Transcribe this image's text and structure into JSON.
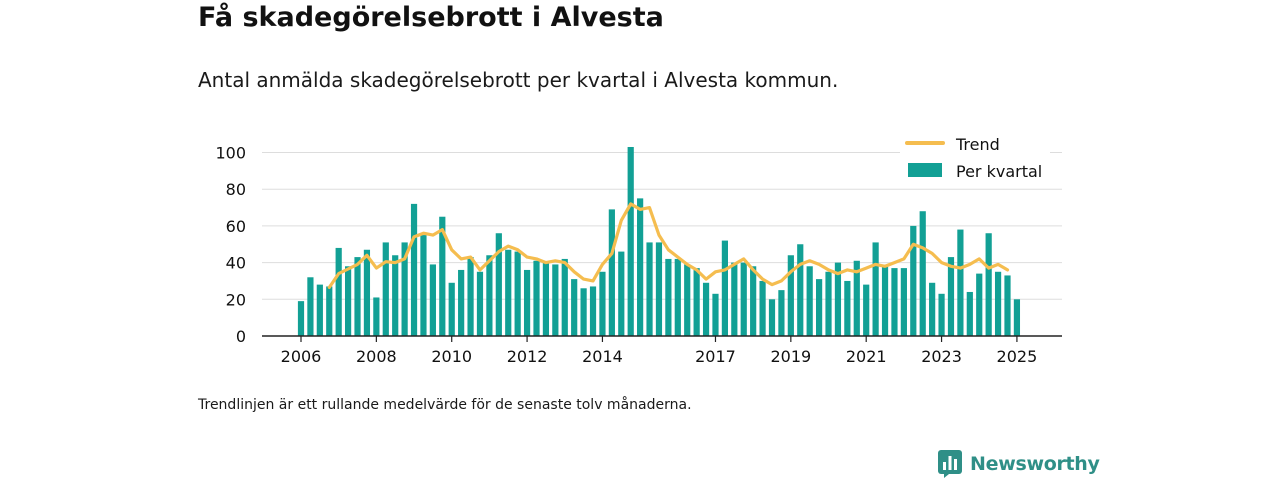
{
  "title": "Få skadegörelsebrott i Alvesta",
  "subtitle": "Antal anmälda skadegörelsebrott per kvartal i Alvesta kommun.",
  "footnote": "Trendlinjen är ett rullande medelvärde för de senaste tolv månaderna.",
  "brand": {
    "name": "Newsworthy",
    "icon": "newsworthy-logo-icon"
  },
  "colors": {
    "bars": "#12a095",
    "trend": "#f5bd4f",
    "grid": "#dddddd",
    "axis": "#222222",
    "brand": "#2f8f87"
  },
  "chart_data": {
    "type": "bar",
    "xaxis_type": "quarterly-time",
    "quarters": [
      "2006-Q1",
      "2006-Q2",
      "2006-Q3",
      "2006-Q4",
      "2007-Q1",
      "2007-Q2",
      "2007-Q3",
      "2007-Q4",
      "2008-Q1",
      "2008-Q2",
      "2008-Q3",
      "2008-Q4",
      "2009-Q1",
      "2009-Q2",
      "2009-Q3",
      "2009-Q4",
      "2010-Q1",
      "2010-Q2",
      "2010-Q3",
      "2010-Q4",
      "2011-Q1",
      "2011-Q2",
      "2011-Q3",
      "2011-Q4",
      "2012-Q1",
      "2012-Q2",
      "2012-Q3",
      "2012-Q4",
      "2013-Q1",
      "2013-Q2",
      "2013-Q3",
      "2013-Q4",
      "2014-Q1",
      "2014-Q2",
      "2014-Q3",
      "2014-Q4",
      "2015-Q1",
      "2015-Q2",
      "2015-Q3",
      "2015-Q4",
      "2016-Q1",
      "2016-Q2",
      "2016-Q3",
      "2016-Q4",
      "2017-Q1",
      "2017-Q2",
      "2017-Q3",
      "2017-Q4",
      "2018-Q1",
      "2018-Q2",
      "2018-Q3",
      "2018-Q4",
      "2019-Q1",
      "2019-Q2",
      "2019-Q3",
      "2019-Q4",
      "2020-Q1",
      "2020-Q2",
      "2020-Q3",
      "2020-Q4",
      "2021-Q1",
      "2021-Q2",
      "2021-Q3",
      "2021-Q4",
      "2022-Q1",
      "2022-Q2",
      "2022-Q3",
      "2022-Q4",
      "2023-Q1",
      "2023-Q2",
      "2023-Q3",
      "2023-Q4",
      "2024-Q1",
      "2024-Q2",
      "2024-Q3",
      "2024-Q4",
      "2025-Q1"
    ],
    "series": [
      {
        "name": "Per kvartal",
        "type": "bar",
        "values": [
          19,
          32,
          28,
          27,
          48,
          38,
          43,
          47,
          21,
          51,
          44,
          51,
          72,
          55,
          39,
          65,
          29,
          36,
          43,
          35,
          44,
          56,
          47,
          46,
          36,
          41,
          40,
          39,
          42,
          31,
          26,
          27,
          35,
          69,
          46,
          103,
          75,
          51,
          51,
          42,
          42,
          39,
          37,
          29,
          23,
          52,
          40,
          40,
          38,
          30,
          20,
          25,
          44,
          50,
          38,
          31,
          35,
          40,
          30,
          41,
          28,
          51,
          38,
          37,
          37,
          60,
          68,
          29,
          23,
          43,
          58,
          24,
          34,
          56,
          35,
          33,
          20
        ]
      },
      {
        "name": "Trend",
        "type": "line",
        "values": [
          null,
          null,
          null,
          26.5,
          34,
          36.5,
          39,
          44,
          37,
          40.5,
          40,
          42,
          54,
          56,
          55,
          58,
          47,
          42,
          43,
          36,
          41,
          46,
          49,
          47,
          43,
          42,
          40,
          41,
          40,
          35,
          31,
          30,
          39,
          45,
          63,
          72,
          69,
          70,
          55,
          47,
          43,
          39,
          36,
          31,
          35,
          36,
          39,
          42,
          36,
          31,
          28,
          30,
          35,
          39,
          41,
          39,
          36,
          34,
          36,
          35,
          37,
          39,
          38,
          40,
          42,
          50,
          48,
          45,
          40,
          38,
          37,
          39,
          42,
          37,
          39,
          36,
          null
        ]
      }
    ],
    "xticks": [
      {
        "label": "2006",
        "quarter": "2006-Q1"
      },
      {
        "label": "2008",
        "quarter": "2008-Q1"
      },
      {
        "label": "2010",
        "quarter": "2010-Q1"
      },
      {
        "label": "2012",
        "quarter": "2012-Q1"
      },
      {
        "label": "2014",
        "quarter": "2014-Q1"
      },
      {
        "label": "2017",
        "quarter": "2017-Q1"
      },
      {
        "label": "2019",
        "quarter": "2019-Q1"
      },
      {
        "label": "2021",
        "quarter": "2021-Q1"
      },
      {
        "label": "2023",
        "quarter": "2023-Q1"
      },
      {
        "label": "2025",
        "quarter": "2025-Q1"
      }
    ],
    "yticks": [
      0,
      20,
      40,
      60,
      80,
      100
    ],
    "ylim": [
      0,
      110
    ],
    "grid": true,
    "legend": {
      "position": "top-right",
      "items": [
        {
          "label": "Trend",
          "kind": "line"
        },
        {
          "label": "Per kvartal",
          "kind": "bar"
        }
      ]
    }
  }
}
